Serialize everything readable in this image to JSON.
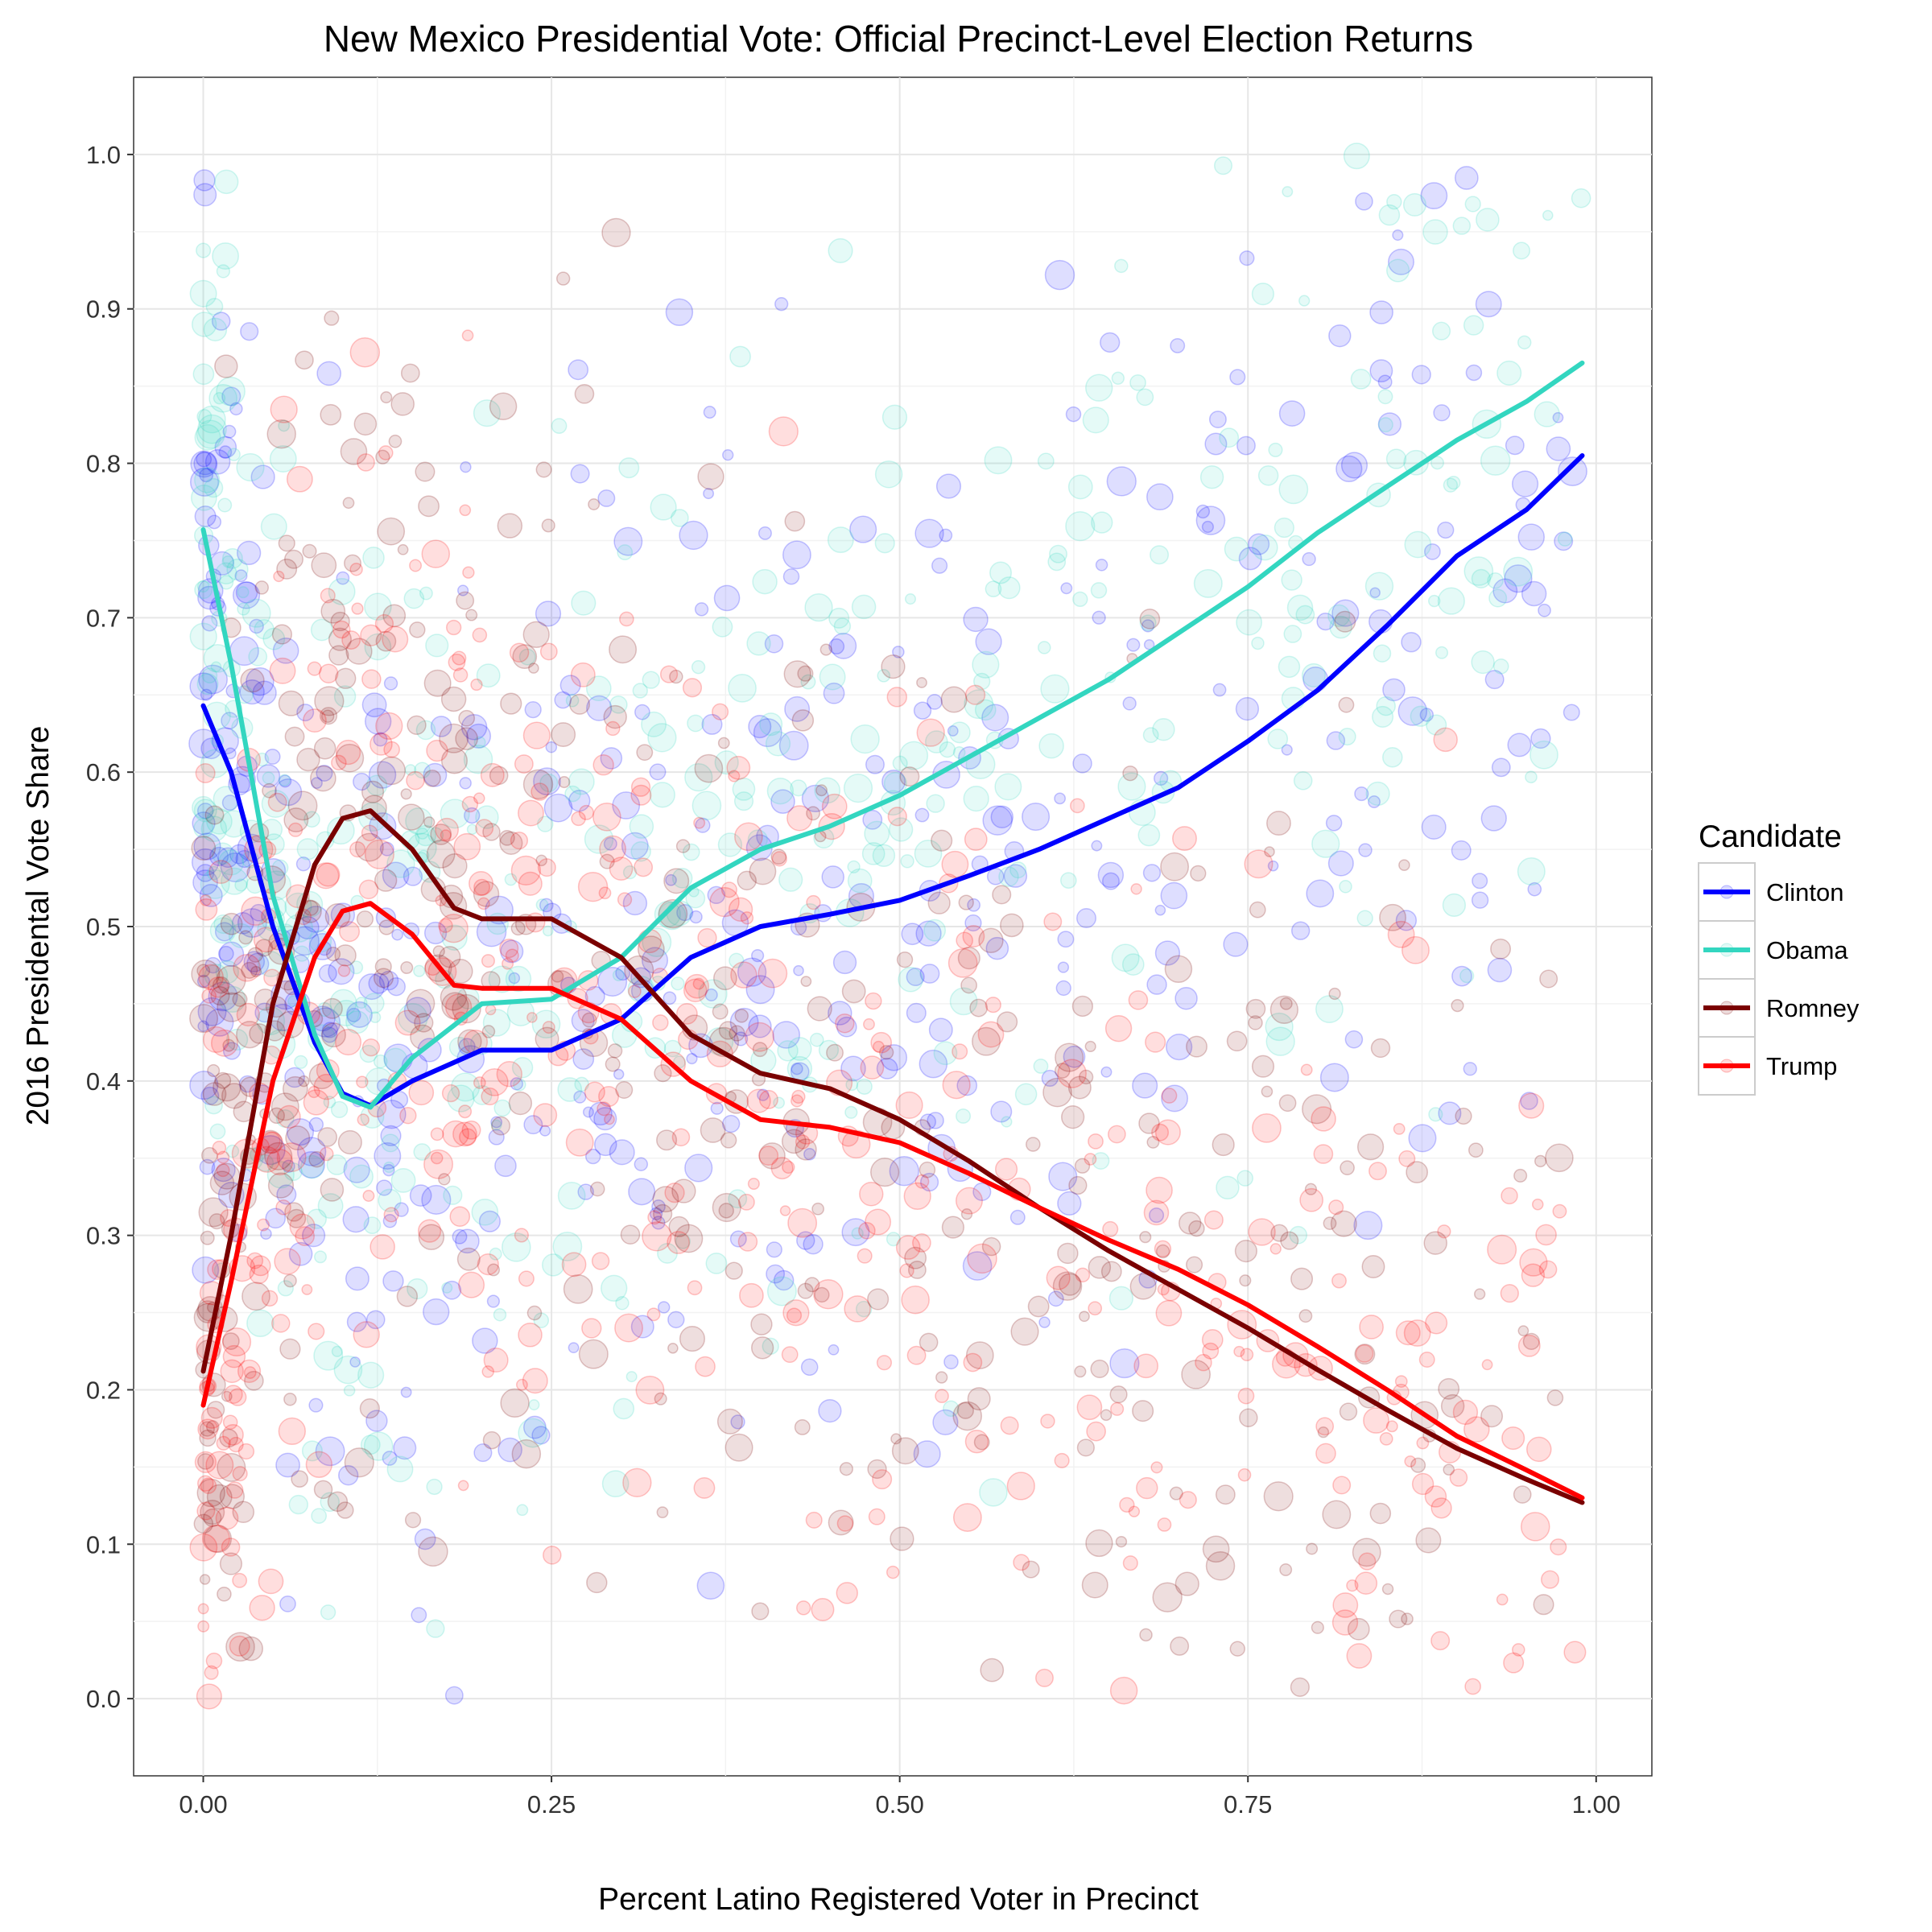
{
  "chart_data": {
    "type": "scatter",
    "title": "New Mexico Presidential Vote: Official Precinct-Level Election Returns",
    "xlabel": "Percent Latino Registered Voter in Precinct",
    "ylabel": "2016 Presidental Vote Share",
    "xlim": [
      -0.05,
      1.04
    ],
    "ylim": [
      -0.05,
      1.05
    ],
    "x_ticks": [
      "0.00",
      "0.25",
      "0.50",
      "0.75",
      "1.00"
    ],
    "y_ticks": [
      "0.0",
      "0.1",
      "0.2",
      "0.3",
      "0.4",
      "0.5",
      "0.6",
      "0.7",
      "0.8",
      "0.9",
      "1.0"
    ],
    "grid": true,
    "legend": {
      "title": "Candidate",
      "position": "right"
    },
    "series": [
      {
        "name": "Clinton",
        "color": "#0000ff",
        "smooth": [
          [
            0.0,
            0.643
          ],
          [
            0.02,
            0.6
          ],
          [
            0.05,
            0.5
          ],
          [
            0.08,
            0.425
          ],
          [
            0.1,
            0.392
          ],
          [
            0.12,
            0.384
          ],
          [
            0.15,
            0.4
          ],
          [
            0.2,
            0.42
          ],
          [
            0.25,
            0.42
          ],
          [
            0.3,
            0.44
          ],
          [
            0.35,
            0.48
          ],
          [
            0.4,
            0.5
          ],
          [
            0.45,
            0.508
          ],
          [
            0.5,
            0.517
          ],
          [
            0.55,
            0.533
          ],
          [
            0.6,
            0.55
          ],
          [
            0.65,
            0.57
          ],
          [
            0.7,
            0.59
          ],
          [
            0.75,
            0.62
          ],
          [
            0.8,
            0.653
          ],
          [
            0.85,
            0.695
          ],
          [
            0.9,
            0.74
          ],
          [
            0.95,
            0.77
          ],
          [
            0.99,
            0.805
          ]
        ],
        "points_center": [
          [
            0.1,
            0.2
          ],
          [
            0.25,
            0.45
          ],
          [
            0.5,
            0.55
          ],
          [
            0.75,
            0.68
          ],
          [
            0.85,
            0.7
          ]
        ]
      },
      {
        "name": "Obama",
        "color": "#33d6c0",
        "smooth": [
          [
            0.0,
            0.757
          ],
          [
            0.02,
            0.67
          ],
          [
            0.05,
            0.52
          ],
          [
            0.08,
            0.43
          ],
          [
            0.1,
            0.39
          ],
          [
            0.12,
            0.383
          ],
          [
            0.15,
            0.415
          ],
          [
            0.2,
            0.45
          ],
          [
            0.25,
            0.453
          ],
          [
            0.3,
            0.48
          ],
          [
            0.35,
            0.525
          ],
          [
            0.4,
            0.55
          ],
          [
            0.45,
            0.565
          ],
          [
            0.5,
            0.585
          ],
          [
            0.55,
            0.61
          ],
          [
            0.6,
            0.635
          ],
          [
            0.65,
            0.66
          ],
          [
            0.7,
            0.69
          ],
          [
            0.75,
            0.72
          ],
          [
            0.8,
            0.755
          ],
          [
            0.85,
            0.785
          ],
          [
            0.9,
            0.815
          ],
          [
            0.95,
            0.84
          ],
          [
            0.99,
            0.865
          ]
        ],
        "points_center": [
          [
            0.1,
            0.25
          ],
          [
            0.3,
            0.5
          ],
          [
            0.55,
            0.7
          ],
          [
            0.8,
            0.78
          ]
        ]
      },
      {
        "name": "Romney",
        "color": "#7a0000",
        "smooth": [
          [
            0.0,
            0.212
          ],
          [
            0.02,
            0.3
          ],
          [
            0.05,
            0.45
          ],
          [
            0.08,
            0.54
          ],
          [
            0.1,
            0.57
          ],
          [
            0.12,
            0.575
          ],
          [
            0.15,
            0.55
          ],
          [
            0.18,
            0.512
          ],
          [
            0.2,
            0.505
          ],
          [
            0.25,
            0.505
          ],
          [
            0.3,
            0.48
          ],
          [
            0.35,
            0.43
          ],
          [
            0.4,
            0.405
          ],
          [
            0.45,
            0.395
          ],
          [
            0.5,
            0.375
          ],
          [
            0.55,
            0.348
          ],
          [
            0.6,
            0.318
          ],
          [
            0.65,
            0.29
          ],
          [
            0.7,
            0.265
          ],
          [
            0.75,
            0.24
          ],
          [
            0.8,
            0.213
          ],
          [
            0.85,
            0.187
          ],
          [
            0.9,
            0.162
          ],
          [
            0.95,
            0.142
          ],
          [
            0.99,
            0.127
          ]
        ],
        "points_center": [
          [
            0.12,
            0.75
          ],
          [
            0.25,
            0.5
          ],
          [
            0.5,
            0.35
          ],
          [
            0.75,
            0.25
          ]
        ]
      },
      {
        "name": "Trump",
        "color": "#ff0000",
        "smooth": [
          [
            0.0,
            0.19
          ],
          [
            0.02,
            0.27
          ],
          [
            0.05,
            0.4
          ],
          [
            0.08,
            0.48
          ],
          [
            0.1,
            0.51
          ],
          [
            0.12,
            0.515
          ],
          [
            0.15,
            0.495
          ],
          [
            0.18,
            0.462
          ],
          [
            0.2,
            0.46
          ],
          [
            0.25,
            0.46
          ],
          [
            0.3,
            0.44
          ],
          [
            0.35,
            0.4
          ],
          [
            0.4,
            0.375
          ],
          [
            0.45,
            0.37
          ],
          [
            0.5,
            0.36
          ],
          [
            0.55,
            0.34
          ],
          [
            0.6,
            0.318
          ],
          [
            0.65,
            0.297
          ],
          [
            0.7,
            0.278
          ],
          [
            0.75,
            0.255
          ],
          [
            0.8,
            0.228
          ],
          [
            0.85,
            0.2
          ],
          [
            0.9,
            0.17
          ],
          [
            0.95,
            0.148
          ],
          [
            0.99,
            0.13
          ]
        ],
        "points_center": [
          [
            0.1,
            0.7
          ],
          [
            0.3,
            0.45
          ],
          [
            0.55,
            0.25
          ],
          [
            0.8,
            0.22
          ]
        ]
      }
    ]
  }
}
